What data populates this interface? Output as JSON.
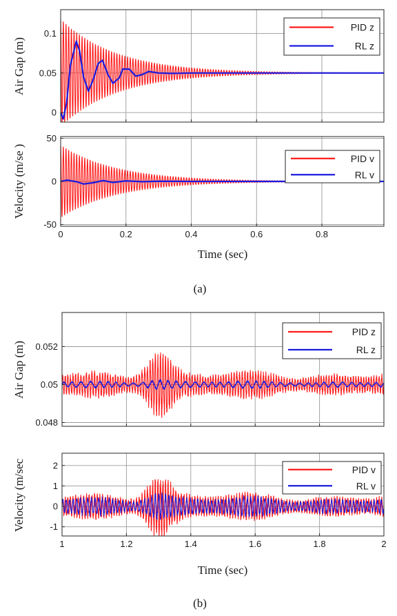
{
  "figure": {
    "caption_a": "(a)",
    "caption_b": "(b)"
  },
  "colors": {
    "pid": "#ff1a1a",
    "rl": "#1a1adf",
    "grid": "#9a9a9a",
    "axis": "#262626"
  },
  "chart_data": [
    {
      "id": "a-top",
      "type": "line",
      "grid": true,
      "legend_position": "top-right",
      "xlabel": "",
      "ylabel": "Air Gap (m)",
      "xlim": [
        0,
        0.99
      ],
      "ylim": [
        -0.012,
        0.13
      ],
      "xticks": [
        0,
        0.2,
        0.4,
        0.6,
        0.8
      ],
      "xtick_labels": [],
      "yticks": [
        0,
        0.05,
        0.1
      ],
      "ytick_labels": [
        "0",
        "0.05",
        "0.1"
      ],
      "series": [
        {
          "name": "PID z",
          "color": "#ff1a1a",
          "model": "decaying-oscillation",
          "offset": 0.05,
          "initial_amplitude": 0.068,
          "decay_time": 0.17,
          "period": 0.0082
        },
        {
          "name": "RL z",
          "color": "#1a1adf",
          "model": "points",
          "points": [
            [
              0,
              0.0
            ],
            [
              0.008,
              -0.008
            ],
            [
              0.018,
              0.012
            ],
            [
              0.03,
              0.06
            ],
            [
              0.048,
              0.09
            ],
            [
              0.058,
              0.078
            ],
            [
              0.07,
              0.045
            ],
            [
              0.085,
              0.027
            ],
            [
              0.1,
              0.042
            ],
            [
              0.115,
              0.062
            ],
            [
              0.128,
              0.066
            ],
            [
              0.145,
              0.048
            ],
            [
              0.16,
              0.037
            ],
            [
              0.18,
              0.044
            ],
            [
              0.19,
              0.055
            ],
            [
              0.21,
              0.055
            ],
            [
              0.23,
              0.046
            ],
            [
              0.25,
              0.048
            ],
            [
              0.27,
              0.052
            ],
            [
              0.3,
              0.05
            ],
            [
              0.34,
              0.0495
            ],
            [
              0.4,
              0.05
            ],
            [
              0.6,
              0.05
            ],
            [
              0.99,
              0.05
            ]
          ]
        }
      ]
    },
    {
      "id": "a-bottom",
      "type": "line",
      "grid": true,
      "legend_position": "top-right",
      "xlabel": "Time (sec)",
      "ylabel": "Velocity (m/se )",
      "xlim": [
        0,
        0.99
      ],
      "ylim": [
        -52,
        52
      ],
      "xticks": [
        0,
        0.2,
        0.4,
        0.6,
        0.8
      ],
      "xtick_labels": [
        "0",
        "0.2",
        "0.4",
        "0.6",
        "0.8"
      ],
      "yticks": [
        -50,
        0,
        50
      ],
      "ytick_labels": [
        "-50",
        "0",
        "50"
      ],
      "series": [
        {
          "name": "PID v",
          "color": "#ff1a1a",
          "model": "decaying-oscillation",
          "offset": 0,
          "initial_amplitude": 42,
          "decay_time": 0.17,
          "period": 0.0082
        },
        {
          "name": "RL v",
          "color": "#1a1adf",
          "model": "points",
          "points": [
            [
              0,
              0
            ],
            [
              0.02,
              1.5
            ],
            [
              0.05,
              -0.5
            ],
            [
              0.07,
              -3
            ],
            [
              0.1,
              -1.5
            ],
            [
              0.13,
              1
            ],
            [
              0.16,
              -1.2
            ],
            [
              0.2,
              0.6
            ],
            [
              0.25,
              -0.3
            ],
            [
              0.3,
              0.2
            ],
            [
              0.4,
              0
            ],
            [
              0.99,
              0
            ]
          ]
        }
      ]
    },
    {
      "id": "b-top",
      "type": "line",
      "grid": true,
      "legend_position": "top-right",
      "xlabel": "",
      "ylabel": "Air Gap (m)",
      "xlim": [
        1,
        2
      ],
      "ylim": [
        0.0478,
        0.0538
      ],
      "xticks": [
        1,
        1.2,
        1.4,
        1.6,
        1.8,
        2
      ],
      "xtick_labels": [],
      "yticks": [
        0.048,
        0.05,
        0.052
      ],
      "ytick_labels": [
        "0.048",
        "0.05",
        "0.052"
      ],
      "series": [
        {
          "name": "PID z",
          "color": "#ff1a1a",
          "model": "noisy-oscillation",
          "offset": 0.05,
          "amplitude": 0.0006,
          "peak_at": 1.3,
          "peak_amplitude": 0.0018,
          "period": 0.0082
        },
        {
          "name": "RL z",
          "color": "#1a1adf",
          "model": "noisy-oscillation",
          "offset": 0.05,
          "amplitude": 0.00016,
          "peak_at": 1.3,
          "peak_amplitude": 0.0002,
          "period": 0.027
        }
      ]
    },
    {
      "id": "b-bottom",
      "type": "line",
      "grid": true,
      "legend_position": "top-right",
      "xlabel": "Time (sec)",
      "ylabel": "Velocity (m/sec",
      "xlim": [
        1,
        2
      ],
      "ylim": [
        -1.45,
        2.6
      ],
      "xticks": [
        1,
        1.2,
        1.4,
        1.6,
        1.8,
        2
      ],
      "xtick_labels": [
        "1",
        "1.2",
        "1.4",
        "1.6",
        "1.8",
        "2"
      ],
      "yticks": [
        -1,
        0,
        1,
        2
      ],
      "ytick_labels": [
        "-1",
        "0",
        "1",
        "2"
      ],
      "series": [
        {
          "name": "PID v",
          "color": "#ff1a1a",
          "model": "noisy-oscillation",
          "offset": 0,
          "amplitude": 0.55,
          "peak_at": 1.3,
          "peak_amplitude": 1.5,
          "period": 0.0082
        },
        {
          "name": "RL v",
          "color": "#1a1adf",
          "model": "noisy-oscillation",
          "offset": 0,
          "amplitude": 0.4,
          "peak_at": 1.3,
          "peak_amplitude": 0.5,
          "period": 0.011
        }
      ]
    }
  ]
}
